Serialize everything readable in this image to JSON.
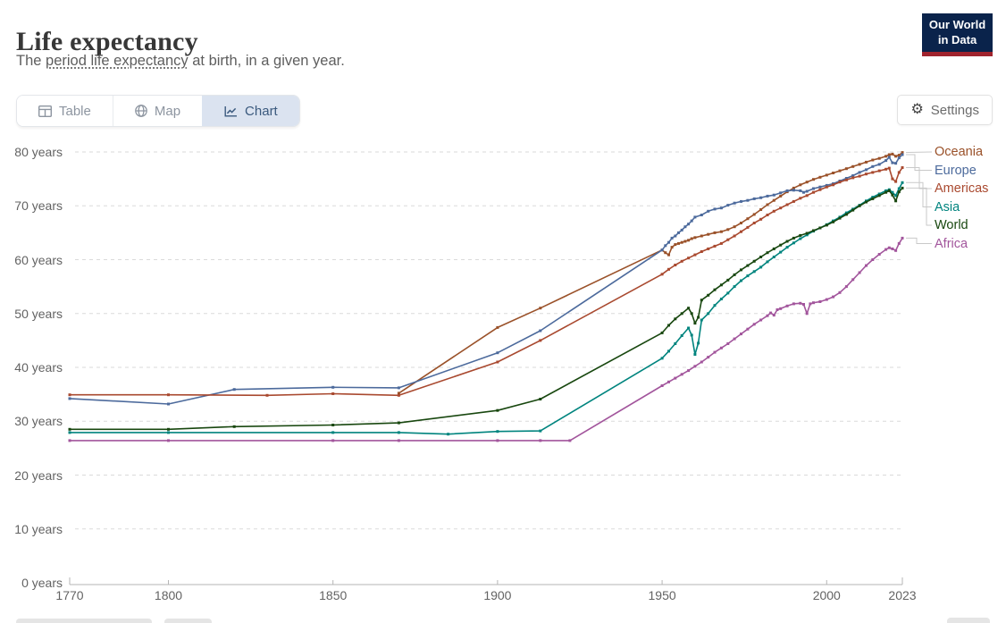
{
  "header": {
    "title": "Life expectancy",
    "subtitle_prefix": "The ",
    "subtitle_link": "period life expectancy",
    "subtitle_suffix": " at birth, in a given year.",
    "logo_line1": "Our World",
    "logo_line2": "in Data"
  },
  "toolbar": {
    "tabs": [
      {
        "label": "Table",
        "icon": "table-icon",
        "active": false
      },
      {
        "label": "Map",
        "icon": "globe-icon",
        "active": false
      },
      {
        "label": "Chart",
        "icon": "line-chart-icon",
        "active": true
      }
    ],
    "settings_label": "Settings",
    "settings_icon": "gear-icon"
  },
  "colors": {
    "tab_active_bg": "#dbe3f0",
    "tab_active_text": "#3b5a7e",
    "logo_bg": "#0a234b",
    "logo_stripe": "#a0232d",
    "gridline": "#dadada",
    "axis": "#b5b5b5",
    "connector": "#c9c9c9"
  },
  "chart_data": {
    "type": "line",
    "title": "Life expectancy",
    "unit": "years",
    "xlim": [
      1770,
      2023
    ],
    "ylim": [
      0,
      80
    ],
    "grid": "dashed-horizontal",
    "legend_position": "right",
    "x_ticks": [
      "1770",
      "1800",
      "1850",
      "1900",
      "1950",
      "2000",
      "2023"
    ],
    "y_ticks": [
      0,
      10,
      20,
      30,
      40,
      50,
      60,
      70,
      80
    ],
    "y_tick_suffix": " years",
    "series": [
      {
        "name": "Oceania",
        "color": "#9A5129",
        "points": [
          [
            1870,
            35.2
          ],
          [
            1900,
            47.4
          ],
          [
            1913,
            51.0
          ],
          [
            1950,
            61.8
          ],
          [
            1951,
            61.3
          ],
          [
            1952,
            60.9
          ],
          [
            1953,
            62.3
          ],
          [
            1954,
            62.8
          ],
          [
            1955,
            63.0
          ],
          [
            1956,
            63.2
          ],
          [
            1957,
            63.4
          ],
          [
            1958,
            63.6
          ],
          [
            1959,
            63.9
          ],
          [
            1960,
            64.1
          ],
          [
            1962,
            64.4
          ],
          [
            1964,
            64.7
          ],
          [
            1966,
            65.0
          ],
          [
            1968,
            65.2
          ],
          [
            1970,
            65.6
          ],
          [
            1972,
            66.1
          ],
          [
            1974,
            66.8
          ],
          [
            1976,
            67.6
          ],
          [
            1978,
            68.4
          ],
          [
            1980,
            69.3
          ],
          [
            1982,
            70.2
          ],
          [
            1984,
            71.0
          ],
          [
            1986,
            71.8
          ],
          [
            1988,
            72.6
          ],
          [
            1990,
            73.3
          ],
          [
            1992,
            73.9
          ],
          [
            1994,
            74.4
          ],
          [
            1996,
            74.9
          ],
          [
            1998,
            75.3
          ],
          [
            2000,
            75.7
          ],
          [
            2002,
            76.1
          ],
          [
            2004,
            76.5
          ],
          [
            2006,
            76.9
          ],
          [
            2008,
            77.3
          ],
          [
            2010,
            77.7
          ],
          [
            2012,
            78.1
          ],
          [
            2014,
            78.5
          ],
          [
            2016,
            78.8
          ],
          [
            2018,
            79.2
          ],
          [
            2019,
            79.5
          ],
          [
            2020,
            79.6
          ],
          [
            2021,
            79.2
          ],
          [
            2022,
            79.4
          ],
          [
            2023,
            79.9
          ]
        ]
      },
      {
        "name": "Europe",
        "color": "#4C6A9C",
        "points": [
          [
            1770,
            34.2
          ],
          [
            1800,
            33.2
          ],
          [
            1820,
            35.9
          ],
          [
            1850,
            36.3
          ],
          [
            1870,
            36.2
          ],
          [
            1900,
            42.7
          ],
          [
            1913,
            46.8
          ],
          [
            1950,
            61.8
          ],
          [
            1951,
            62.6
          ],
          [
            1952,
            63.2
          ],
          [
            1953,
            64.0
          ],
          [
            1954,
            64.4
          ],
          [
            1955,
            65.0
          ],
          [
            1956,
            65.5
          ],
          [
            1957,
            66.1
          ],
          [
            1958,
            66.6
          ],
          [
            1959,
            67.2
          ],
          [
            1960,
            67.9
          ],
          [
            1962,
            68.3
          ],
          [
            1964,
            69.0
          ],
          [
            1966,
            69.4
          ],
          [
            1968,
            69.6
          ],
          [
            1970,
            70.1
          ],
          [
            1972,
            70.5
          ],
          [
            1974,
            70.8
          ],
          [
            1976,
            71.0
          ],
          [
            1978,
            71.3
          ],
          [
            1980,
            71.5
          ],
          [
            1982,
            71.8
          ],
          [
            1984,
            72.0
          ],
          [
            1986,
            72.4
          ],
          [
            1988,
            72.8
          ],
          [
            1990,
            72.9
          ],
          [
            1992,
            72.8
          ],
          [
            1993,
            72.5
          ],
          [
            1994,
            72.7
          ],
          [
            1996,
            73.2
          ],
          [
            1998,
            73.5
          ],
          [
            2000,
            73.8
          ],
          [
            2002,
            74.1
          ],
          [
            2004,
            74.6
          ],
          [
            2006,
            75.1
          ],
          [
            2008,
            75.6
          ],
          [
            2010,
            76.2
          ],
          [
            2012,
            76.7
          ],
          [
            2014,
            77.3
          ],
          [
            2016,
            77.7
          ],
          [
            2018,
            78.4
          ],
          [
            2019,
            79.0
          ],
          [
            2020,
            78.0
          ],
          [
            2021,
            77.9
          ],
          [
            2022,
            78.9
          ],
          [
            2023,
            79.5
          ]
        ]
      },
      {
        "name": "Americas",
        "color": "#A9492F",
        "points": [
          [
            1770,
            34.9
          ],
          [
            1800,
            34.9
          ],
          [
            1830,
            34.8
          ],
          [
            1850,
            35.1
          ],
          [
            1870,
            34.8
          ],
          [
            1900,
            41.0
          ],
          [
            1913,
            45.0
          ],
          [
            1950,
            57.3
          ],
          [
            1952,
            58.2
          ],
          [
            1954,
            59.0
          ],
          [
            1956,
            59.7
          ],
          [
            1958,
            60.3
          ],
          [
            1960,
            60.9
          ],
          [
            1962,
            61.5
          ],
          [
            1964,
            62.0
          ],
          [
            1966,
            62.5
          ],
          [
            1968,
            63.0
          ],
          [
            1970,
            63.7
          ],
          [
            1972,
            64.4
          ],
          [
            1974,
            65.2
          ],
          [
            1976,
            66.0
          ],
          [
            1978,
            66.8
          ],
          [
            1980,
            67.5
          ],
          [
            1982,
            68.3
          ],
          [
            1984,
            69.0
          ],
          [
            1986,
            69.6
          ],
          [
            1988,
            70.2
          ],
          [
            1990,
            70.8
          ],
          [
            1992,
            71.4
          ],
          [
            1994,
            71.9
          ],
          [
            1996,
            72.5
          ],
          [
            1998,
            73.0
          ],
          [
            2000,
            73.5
          ],
          [
            2002,
            73.9
          ],
          [
            2004,
            74.4
          ],
          [
            2006,
            74.8
          ],
          [
            2008,
            75.2
          ],
          [
            2010,
            75.5
          ],
          [
            2012,
            75.9
          ],
          [
            2014,
            76.2
          ],
          [
            2016,
            76.5
          ],
          [
            2018,
            76.8
          ],
          [
            2019,
            77.0
          ],
          [
            2020,
            75.0
          ],
          [
            2021,
            74.5
          ],
          [
            2022,
            76.2
          ],
          [
            2023,
            77.1
          ]
        ]
      },
      {
        "name": "Asia",
        "color": "#00847E",
        "points": [
          [
            1770,
            27.9
          ],
          [
            1800,
            27.9
          ],
          [
            1850,
            27.9
          ],
          [
            1870,
            27.9
          ],
          [
            1885,
            27.6
          ],
          [
            1900,
            28.1
          ],
          [
            1913,
            28.2
          ],
          [
            1950,
            41.7
          ],
          [
            1952,
            43.0
          ],
          [
            1954,
            44.4
          ],
          [
            1956,
            45.9
          ],
          [
            1958,
            47.3
          ],
          [
            1959,
            46.0
          ],
          [
            1960,
            42.4
          ],
          [
            1961,
            44.5
          ],
          [
            1962,
            48.8
          ],
          [
            1964,
            50.0
          ],
          [
            1966,
            51.5
          ],
          [
            1968,
            52.7
          ],
          [
            1970,
            53.8
          ],
          [
            1972,
            55.0
          ],
          [
            1974,
            56.1
          ],
          [
            1976,
            57.0
          ],
          [
            1978,
            57.8
          ],
          [
            1980,
            58.6
          ],
          [
            1982,
            59.6
          ],
          [
            1984,
            60.5
          ],
          [
            1986,
            61.4
          ],
          [
            1988,
            62.3
          ],
          [
            1990,
            63.1
          ],
          [
            1992,
            63.9
          ],
          [
            1994,
            64.6
          ],
          [
            1996,
            65.3
          ],
          [
            1998,
            65.9
          ],
          [
            2000,
            66.5
          ],
          [
            2002,
            67.2
          ],
          [
            2004,
            67.9
          ],
          [
            2006,
            68.7
          ],
          [
            2008,
            69.4
          ],
          [
            2010,
            70.1
          ],
          [
            2012,
            70.9
          ],
          [
            2014,
            71.6
          ],
          [
            2016,
            72.2
          ],
          [
            2018,
            72.8
          ],
          [
            2019,
            73.0
          ],
          [
            2020,
            72.5
          ],
          [
            2021,
            71.9
          ],
          [
            2022,
            73.2
          ],
          [
            2023,
            74.3
          ]
        ]
      },
      {
        "name": "World",
        "color": "#18470F",
        "points": [
          [
            1770,
            28.5
          ],
          [
            1800,
            28.5
          ],
          [
            1820,
            29.0
          ],
          [
            1850,
            29.3
          ],
          [
            1870,
            29.7
          ],
          [
            1900,
            32.0
          ],
          [
            1913,
            34.1
          ],
          [
            1950,
            46.4
          ],
          [
            1952,
            47.8
          ],
          [
            1954,
            49.0
          ],
          [
            1956,
            50.0
          ],
          [
            1958,
            51.0
          ],
          [
            1959,
            50.0
          ],
          [
            1960,
            48.2
          ],
          [
            1961,
            49.3
          ],
          [
            1962,
            52.5
          ],
          [
            1964,
            53.4
          ],
          [
            1966,
            54.4
          ],
          [
            1968,
            55.3
          ],
          [
            1970,
            56.2
          ],
          [
            1972,
            57.2
          ],
          [
            1974,
            58.1
          ],
          [
            1976,
            58.9
          ],
          [
            1978,
            59.7
          ],
          [
            1980,
            60.5
          ],
          [
            1982,
            61.3
          ],
          [
            1984,
            62.0
          ],
          [
            1986,
            62.7
          ],
          [
            1988,
            63.4
          ],
          [
            1990,
            64.0
          ],
          [
            1992,
            64.5
          ],
          [
            1994,
            64.9
          ],
          [
            1996,
            65.4
          ],
          [
            1998,
            65.9
          ],
          [
            2000,
            66.4
          ],
          [
            2002,
            67.0
          ],
          [
            2004,
            67.7
          ],
          [
            2006,
            68.4
          ],
          [
            2008,
            69.2
          ],
          [
            2010,
            70.0
          ],
          [
            2012,
            70.7
          ],
          [
            2014,
            71.3
          ],
          [
            2016,
            71.9
          ],
          [
            2018,
            72.5
          ],
          [
            2019,
            72.8
          ],
          [
            2020,
            72.0
          ],
          [
            2021,
            70.9
          ],
          [
            2022,
            72.6
          ],
          [
            2023,
            73.3
          ]
        ]
      },
      {
        "name": "Africa",
        "color": "#A2559C",
        "points": [
          [
            1770,
            26.4
          ],
          [
            1800,
            26.4
          ],
          [
            1850,
            26.4
          ],
          [
            1870,
            26.4
          ],
          [
            1900,
            26.4
          ],
          [
            1913,
            26.4
          ],
          [
            1922,
            26.4
          ],
          [
            1950,
            36.6
          ],
          [
            1952,
            37.3
          ],
          [
            1954,
            38.0
          ],
          [
            1956,
            38.7
          ],
          [
            1958,
            39.4
          ],
          [
            1960,
            40.2
          ],
          [
            1962,
            41.0
          ],
          [
            1964,
            41.9
          ],
          [
            1966,
            42.8
          ],
          [
            1968,
            43.6
          ],
          [
            1970,
            44.4
          ],
          [
            1972,
            45.3
          ],
          [
            1974,
            46.2
          ],
          [
            1976,
            47.1
          ],
          [
            1978,
            48.0
          ],
          [
            1980,
            48.8
          ],
          [
            1982,
            49.6
          ],
          [
            1983,
            50.1
          ],
          [
            1984,
            49.7
          ],
          [
            1985,
            50.7
          ],
          [
            1986,
            50.9
          ],
          [
            1988,
            51.4
          ],
          [
            1990,
            51.8
          ],
          [
            1992,
            51.9
          ],
          [
            1993,
            51.7
          ],
          [
            1994,
            50.0
          ],
          [
            1995,
            51.8
          ],
          [
            1996,
            52.0
          ],
          [
            1998,
            52.2
          ],
          [
            2000,
            52.6
          ],
          [
            2002,
            53.1
          ],
          [
            2004,
            53.9
          ],
          [
            2006,
            55.0
          ],
          [
            2008,
            56.3
          ],
          [
            2010,
            57.6
          ],
          [
            2012,
            58.9
          ],
          [
            2014,
            60.0
          ],
          [
            2016,
            61.0
          ],
          [
            2018,
            61.9
          ],
          [
            2019,
            62.2
          ],
          [
            2020,
            62.0
          ],
          [
            2021,
            61.7
          ],
          [
            2022,
            63.0
          ],
          [
            2023,
            64.0
          ]
        ]
      }
    ]
  }
}
